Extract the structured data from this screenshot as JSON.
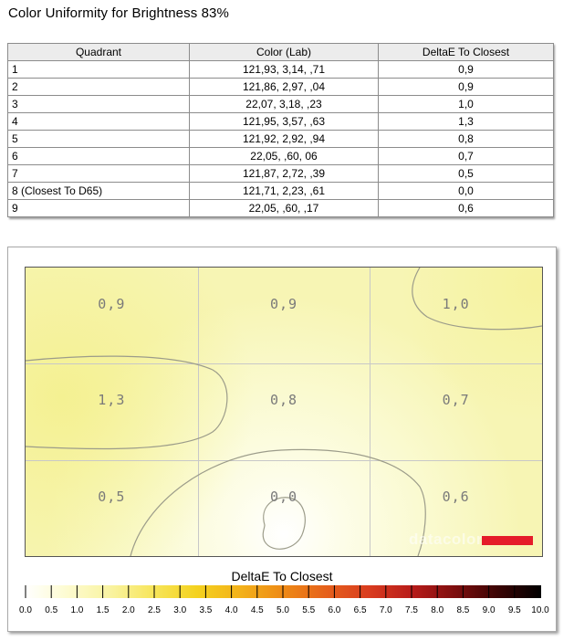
{
  "title": "Color Uniformity for Brightness 83%",
  "table": {
    "headers": [
      "Quadrant",
      "Color (Lab)",
      "DeltaE To Closest"
    ],
    "rows": [
      {
        "quadrant": "1",
        "color": "121,93,   3,14,    ,71",
        "delta": "0,9"
      },
      {
        "quadrant": "2",
        "color": "121,86,   2,97,    ,04",
        "delta": "0,9"
      },
      {
        "quadrant": "3",
        "color": "22,07,   3,18,    ,23",
        "delta": "1,0"
      },
      {
        "quadrant": "4",
        "color": "121,95,   3,57,    ,63",
        "delta": "1,3"
      },
      {
        "quadrant": "5",
        "color": "121,92,   2,92,    ,94",
        "delta": "0,8"
      },
      {
        "quadrant": "6",
        "color": "22,05,    ,60,    06",
        "delta": "0,7"
      },
      {
        "quadrant": "7",
        "color": "121,87,   2,72,    ,39",
        "delta": "0,5"
      },
      {
        "quadrant": "8 (Closest To D65)",
        "color": "121,71,   2,23,    ,61",
        "delta": "0,0"
      },
      {
        "quadrant": "9",
        "color": "22,05,    ,60,    ,17",
        "delta": "0,6"
      }
    ]
  },
  "chart_data": {
    "type": "heatmap",
    "title": "",
    "grid": {
      "rows": 3,
      "cols": 3,
      "values": [
        [
          0.9,
          0.9,
          1.0
        ],
        [
          1.3,
          0.8,
          0.7
        ],
        [
          0.5,
          0.0,
          0.6
        ]
      ],
      "labels": [
        [
          "0,9",
          "0,9",
          "1,0"
        ],
        [
          "1,3",
          "0,8",
          "0,7"
        ],
        [
          "0,5",
          "0,0",
          "0,6"
        ]
      ]
    },
    "colorbar": {
      "title": "DeltaE To Closest",
      "min": 0,
      "max": 10,
      "step": 0.5,
      "tick_labels": [
        "0.0",
        "0.5",
        "1.0",
        "1.5",
        "2.0",
        "2.5",
        "3.0",
        "3.5",
        "4.0",
        "4.5",
        "5.0",
        "5.5",
        "6.0",
        "6.5",
        "7.0",
        "7.5",
        "8.0",
        "8.5",
        "9.0",
        "9.5",
        "10.0"
      ],
      "colors": [
        "#ffffff",
        "#fdfbd0",
        "#f9f3a0",
        "#f7e55a",
        "#f4d21f",
        "#f3b21a",
        "#ee8a15",
        "#e6611b",
        "#d93c1f",
        "#b81c1a",
        "#7e0e0e",
        "#3a0404",
        "#000000"
      ]
    },
    "watermark": "datacolor",
    "watermark_color": "#e51c2a",
    "grid_lines": true
  }
}
